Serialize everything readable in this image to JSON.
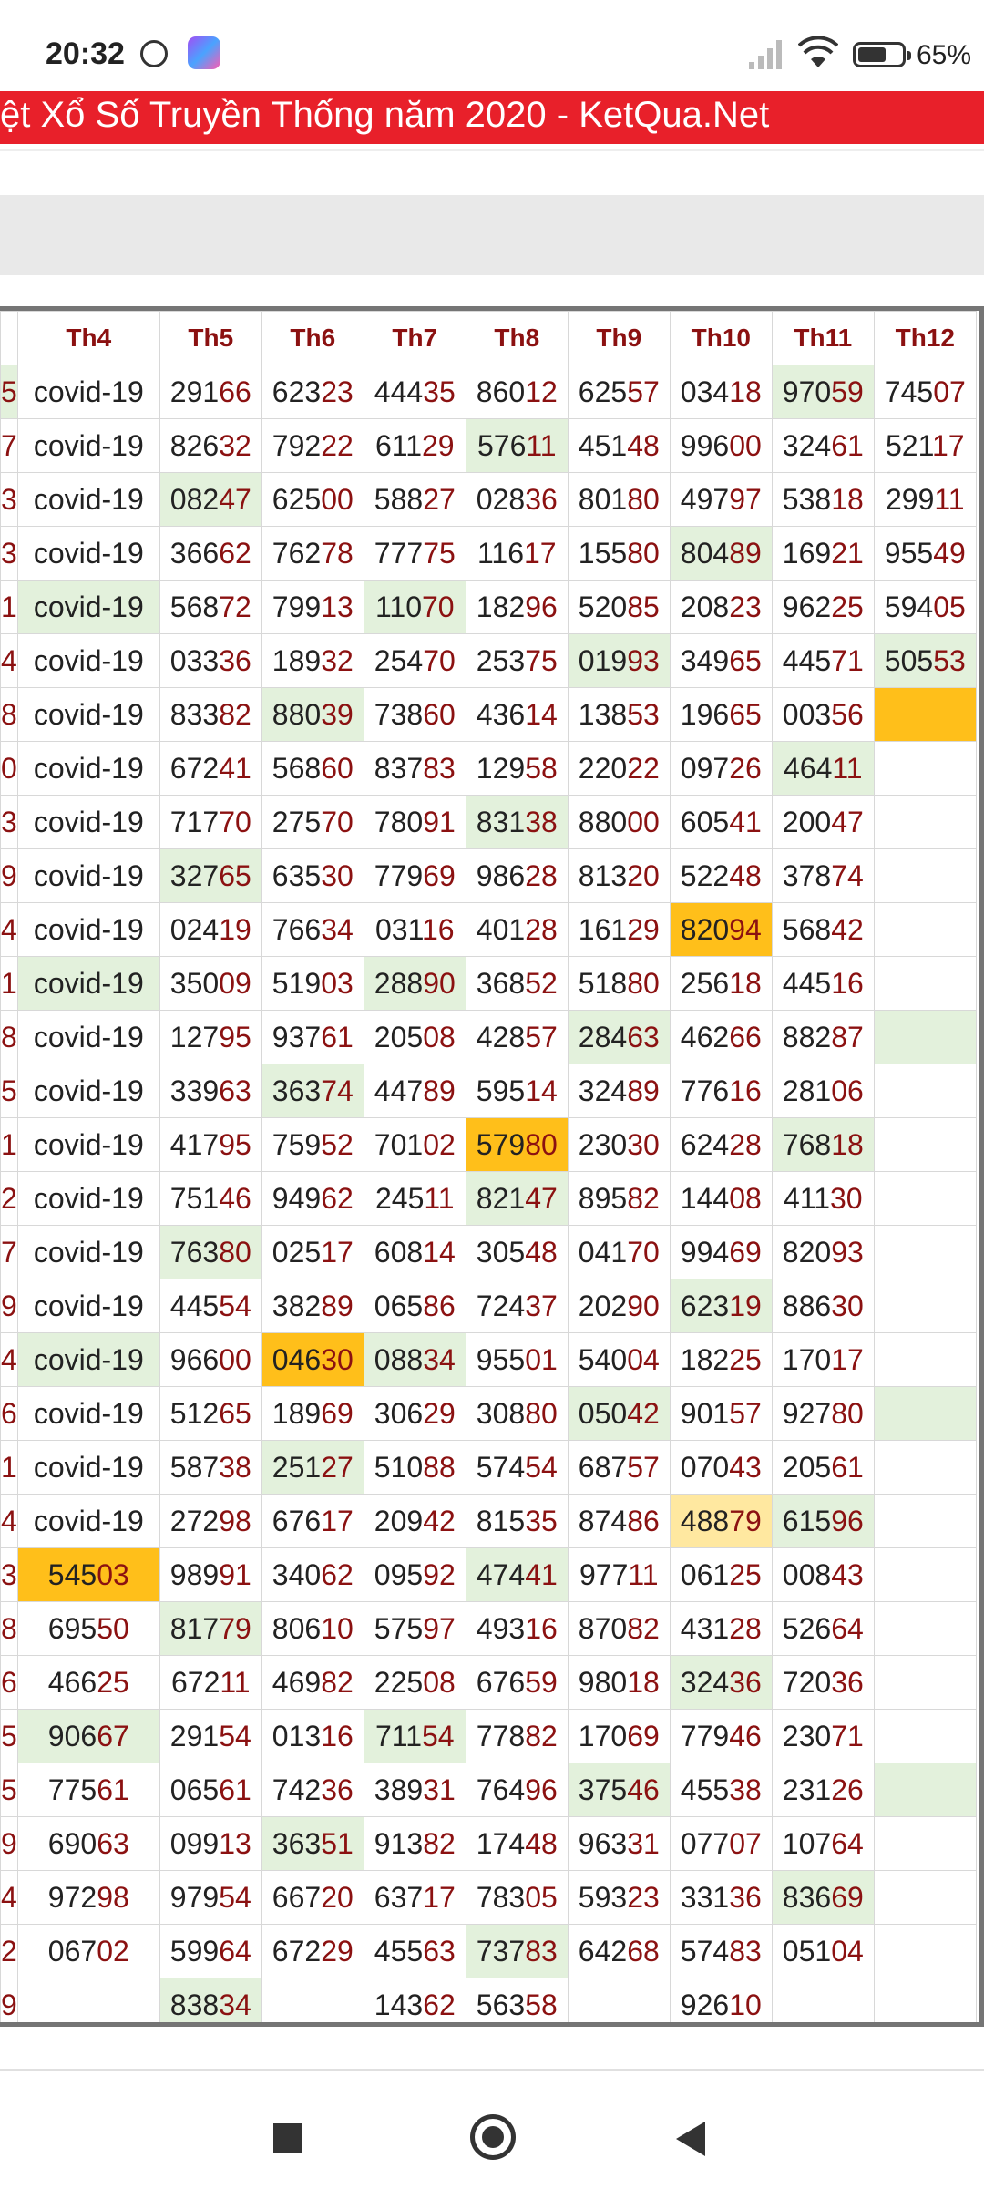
{
  "status_bar": {
    "time": "20:32",
    "battery": "65%"
  },
  "page": {
    "title": "ệt Xổ Số Truyền Thống năm 2020 - KetQua.Net"
  },
  "table": {
    "headers": [
      "",
      "Th4",
      "Th5",
      "Th6",
      "Th7",
      "Th8",
      "Th9",
      "Th10",
      "Th11",
      "Th12"
    ],
    "rows": [
      [
        {
          "v": "5",
          "c": "g"
        },
        {
          "v": "covid-19"
        },
        {
          "v": "29166"
        },
        {
          "v": "62323"
        },
        {
          "v": "44435"
        },
        {
          "v": "86012"
        },
        {
          "v": "62557"
        },
        {
          "v": "03418"
        },
        {
          "v": "97059",
          "c": "g"
        },
        {
          "v": "74507"
        }
      ],
      [
        {
          "v": "7"
        },
        {
          "v": "covid-19"
        },
        {
          "v": "82632"
        },
        {
          "v": "79222"
        },
        {
          "v": "61129"
        },
        {
          "v": "57611",
          "c": "g"
        },
        {
          "v": "45148"
        },
        {
          "v": "99600"
        },
        {
          "v": "32461"
        },
        {
          "v": "52117"
        }
      ],
      [
        {
          "v": "3"
        },
        {
          "v": "covid-19"
        },
        {
          "v": "08247",
          "c": "g"
        },
        {
          "v": "62500"
        },
        {
          "v": "58827"
        },
        {
          "v": "02836"
        },
        {
          "v": "80180"
        },
        {
          "v": "49797"
        },
        {
          "v": "53818"
        },
        {
          "v": "29911"
        }
      ],
      [
        {
          "v": "3"
        },
        {
          "v": "covid-19"
        },
        {
          "v": "36662"
        },
        {
          "v": "76278"
        },
        {
          "v": "77775"
        },
        {
          "v": "11617"
        },
        {
          "v": "15580"
        },
        {
          "v": "80489",
          "c": "g"
        },
        {
          "v": "16921"
        },
        {
          "v": "95549"
        }
      ],
      [
        {
          "v": "1"
        },
        {
          "v": "covid-19",
          "c": "g"
        },
        {
          "v": "56872"
        },
        {
          "v": "79913"
        },
        {
          "v": "11070",
          "c": "g"
        },
        {
          "v": "18296"
        },
        {
          "v": "52085"
        },
        {
          "v": "20823"
        },
        {
          "v": "96225"
        },
        {
          "v": "59405"
        }
      ],
      [
        {
          "v": "4"
        },
        {
          "v": "covid-19"
        },
        {
          "v": "03336"
        },
        {
          "v": "18932"
        },
        {
          "v": "25470"
        },
        {
          "v": "25375"
        },
        {
          "v": "01993",
          "c": "g"
        },
        {
          "v": "34965"
        },
        {
          "v": "44571"
        },
        {
          "v": "50553",
          "c": "g"
        }
      ],
      [
        {
          "v": "8"
        },
        {
          "v": "covid-19"
        },
        {
          "v": "83382"
        },
        {
          "v": "88039",
          "c": "g"
        },
        {
          "v": "73860"
        },
        {
          "v": "43614"
        },
        {
          "v": "13853"
        },
        {
          "v": "19665"
        },
        {
          "v": "00356"
        },
        {
          "v": "",
          "c": "o"
        }
      ],
      [
        {
          "v": "0"
        },
        {
          "v": "covid-19"
        },
        {
          "v": "67241"
        },
        {
          "v": "56860"
        },
        {
          "v": "83783"
        },
        {
          "v": "12958"
        },
        {
          "v": "22022"
        },
        {
          "v": "09726"
        },
        {
          "v": "46411",
          "c": "g"
        },
        {
          "v": ""
        }
      ],
      [
        {
          "v": "3"
        },
        {
          "v": "covid-19"
        },
        {
          "v": "71770"
        },
        {
          "v": "27570"
        },
        {
          "v": "78091"
        },
        {
          "v": "83138",
          "c": "g"
        },
        {
          "v": "88000"
        },
        {
          "v": "60541"
        },
        {
          "v": "20047"
        },
        {
          "v": ""
        }
      ],
      [
        {
          "v": "9"
        },
        {
          "v": "covid-19"
        },
        {
          "v": "32765",
          "c": "g"
        },
        {
          "v": "63530"
        },
        {
          "v": "77969"
        },
        {
          "v": "98628"
        },
        {
          "v": "81320"
        },
        {
          "v": "52248"
        },
        {
          "v": "37874"
        },
        {
          "v": ""
        }
      ],
      [
        {
          "v": "4"
        },
        {
          "v": "covid-19"
        },
        {
          "v": "02419"
        },
        {
          "v": "76634"
        },
        {
          "v": "03116"
        },
        {
          "v": "40128"
        },
        {
          "v": "16129"
        },
        {
          "v": "82094",
          "c": "o"
        },
        {
          "v": "56842"
        },
        {
          "v": ""
        }
      ],
      [
        {
          "v": "1"
        },
        {
          "v": "covid-19",
          "c": "g"
        },
        {
          "v": "35009"
        },
        {
          "v": "51903"
        },
        {
          "v": "28890",
          "c": "g"
        },
        {
          "v": "36852"
        },
        {
          "v": "51880"
        },
        {
          "v": "25618"
        },
        {
          "v": "44516"
        },
        {
          "v": ""
        }
      ],
      [
        {
          "v": "8"
        },
        {
          "v": "covid-19"
        },
        {
          "v": "12795"
        },
        {
          "v": "93761"
        },
        {
          "v": "20508"
        },
        {
          "v": "42857"
        },
        {
          "v": "28463",
          "c": "g"
        },
        {
          "v": "46266"
        },
        {
          "v": "88287"
        },
        {
          "v": "",
          "c": "g"
        }
      ],
      [
        {
          "v": "5"
        },
        {
          "v": "covid-19"
        },
        {
          "v": "33963"
        },
        {
          "v": "36374",
          "c": "g"
        },
        {
          "v": "44789"
        },
        {
          "v": "59514"
        },
        {
          "v": "32489"
        },
        {
          "v": "77616"
        },
        {
          "v": "28106"
        },
        {
          "v": ""
        }
      ],
      [
        {
          "v": "1"
        },
        {
          "v": "covid-19"
        },
        {
          "v": "41795"
        },
        {
          "v": "75952"
        },
        {
          "v": "70102"
        },
        {
          "v": "57980",
          "c": "o"
        },
        {
          "v": "23030"
        },
        {
          "v": "62428"
        },
        {
          "v": "76818",
          "c": "g"
        },
        {
          "v": ""
        }
      ],
      [
        {
          "v": "2"
        },
        {
          "v": "covid-19"
        },
        {
          "v": "75146"
        },
        {
          "v": "94962"
        },
        {
          "v": "24511"
        },
        {
          "v": "82147",
          "c": "g"
        },
        {
          "v": "89582"
        },
        {
          "v": "14408"
        },
        {
          "v": "41130"
        },
        {
          "v": ""
        }
      ],
      [
        {
          "v": "7"
        },
        {
          "v": "covid-19"
        },
        {
          "v": "76380",
          "c": "g"
        },
        {
          "v": "02517"
        },
        {
          "v": "60814"
        },
        {
          "v": "30548"
        },
        {
          "v": "04170"
        },
        {
          "v": "99469"
        },
        {
          "v": "82093"
        },
        {
          "v": ""
        }
      ],
      [
        {
          "v": "9"
        },
        {
          "v": "covid-19"
        },
        {
          "v": "44554"
        },
        {
          "v": "38289"
        },
        {
          "v": "06586"
        },
        {
          "v": "72437"
        },
        {
          "v": "20290"
        },
        {
          "v": "62319",
          "c": "g"
        },
        {
          "v": "88630"
        },
        {
          "v": ""
        }
      ],
      [
        {
          "v": "4"
        },
        {
          "v": "covid-19",
          "c": "g"
        },
        {
          "v": "96600"
        },
        {
          "v": "04630",
          "c": "o"
        },
        {
          "v": "08834",
          "c": "g"
        },
        {
          "v": "95501"
        },
        {
          "v": "54004"
        },
        {
          "v": "18225"
        },
        {
          "v": "17017"
        },
        {
          "v": ""
        }
      ],
      [
        {
          "v": "6"
        },
        {
          "v": "covid-19"
        },
        {
          "v": "51265"
        },
        {
          "v": "18969"
        },
        {
          "v": "30629"
        },
        {
          "v": "30880"
        },
        {
          "v": "05042",
          "c": "g"
        },
        {
          "v": "90157"
        },
        {
          "v": "92780"
        },
        {
          "v": "",
          "c": "g"
        }
      ],
      [
        {
          "v": "1"
        },
        {
          "v": "covid-19"
        },
        {
          "v": "58738"
        },
        {
          "v": "25127",
          "c": "g"
        },
        {
          "v": "51088"
        },
        {
          "v": "57454"
        },
        {
          "v": "68757"
        },
        {
          "v": "07043"
        },
        {
          "v": "20561"
        },
        {
          "v": ""
        }
      ],
      [
        {
          "v": "4"
        },
        {
          "v": "covid-19"
        },
        {
          "v": "27298"
        },
        {
          "v": "67617"
        },
        {
          "v": "20942"
        },
        {
          "v": "81535"
        },
        {
          "v": "87486"
        },
        {
          "v": "48879",
          "c": "y"
        },
        {
          "v": "61596",
          "c": "g"
        },
        {
          "v": ""
        }
      ],
      [
        {
          "v": "3"
        },
        {
          "v": "54503",
          "c": "o"
        },
        {
          "v": "98991"
        },
        {
          "v": "34062"
        },
        {
          "v": "09592"
        },
        {
          "v": "47441",
          "c": "g"
        },
        {
          "v": "97711"
        },
        {
          "v": "06125"
        },
        {
          "v": "00843"
        },
        {
          "v": ""
        }
      ],
      [
        {
          "v": "8"
        },
        {
          "v": "69550"
        },
        {
          "v": "81779",
          "c": "g"
        },
        {
          "v": "80610"
        },
        {
          "v": "57597"
        },
        {
          "v": "49316"
        },
        {
          "v": "87082"
        },
        {
          "v": "43128"
        },
        {
          "v": "52664"
        },
        {
          "v": ""
        }
      ],
      [
        {
          "v": "6"
        },
        {
          "v": "46625"
        },
        {
          "v": "67211"
        },
        {
          "v": "46982"
        },
        {
          "v": "22508"
        },
        {
          "v": "67659"
        },
        {
          "v": "98018"
        },
        {
          "v": "32436",
          "c": "g"
        },
        {
          "v": "72036"
        },
        {
          "v": ""
        }
      ],
      [
        {
          "v": "5"
        },
        {
          "v": "90667",
          "c": "g"
        },
        {
          "v": "29154"
        },
        {
          "v": "01316"
        },
        {
          "v": "71154",
          "c": "g"
        },
        {
          "v": "77882"
        },
        {
          "v": "17069"
        },
        {
          "v": "77946"
        },
        {
          "v": "23071"
        },
        {
          "v": ""
        }
      ],
      [
        {
          "v": "5"
        },
        {
          "v": "77561"
        },
        {
          "v": "06561"
        },
        {
          "v": "74236"
        },
        {
          "v": "38931"
        },
        {
          "v": "76496"
        },
        {
          "v": "37546",
          "c": "g"
        },
        {
          "v": "45538"
        },
        {
          "v": "23126"
        },
        {
          "v": "",
          "c": "g"
        }
      ],
      [
        {
          "v": "9"
        },
        {
          "v": "69063"
        },
        {
          "v": "09913"
        },
        {
          "v": "36351",
          "c": "g"
        },
        {
          "v": "91382"
        },
        {
          "v": "17448"
        },
        {
          "v": "96331"
        },
        {
          "v": "07707"
        },
        {
          "v": "10764"
        },
        {
          "v": ""
        }
      ],
      [
        {
          "v": "4"
        },
        {
          "v": "97298"
        },
        {
          "v": "97954"
        },
        {
          "v": "66720"
        },
        {
          "v": "63717"
        },
        {
          "v": "78305"
        },
        {
          "v": "59323"
        },
        {
          "v": "33136"
        },
        {
          "v": "83669",
          "c": "g"
        },
        {
          "v": ""
        }
      ],
      [
        {
          "v": "2"
        },
        {
          "v": "06702"
        },
        {
          "v": "59964"
        },
        {
          "v": "67229"
        },
        {
          "v": "45563"
        },
        {
          "v": "73783",
          "c": "g"
        },
        {
          "v": "64268"
        },
        {
          "v": "57483"
        },
        {
          "v": "05104"
        },
        {
          "v": ""
        }
      ],
      [
        {
          "v": "9"
        },
        {
          "v": ""
        },
        {
          "v": "83834",
          "c": "g"
        },
        {
          "v": ""
        },
        {
          "v": "14362"
        },
        {
          "v": "56358"
        },
        {
          "v": ""
        },
        {
          "v": "92610"
        },
        {
          "v": ""
        },
        {
          "v": ""
        }
      ]
    ]
  },
  "colors": {
    "banner": "#e8202a",
    "header_text": "#8b1111",
    "highlight_green": "#e3f1dc",
    "highlight_orange": "#ffbf1a",
    "highlight_yellow": "#ffe8a0"
  },
  "icons": [
    "alarm-icon",
    "app-icon",
    "signal-icon",
    "wifi-icon",
    "battery-icon",
    "nav-recents-icon",
    "nav-home-icon",
    "nav-back-icon"
  ]
}
